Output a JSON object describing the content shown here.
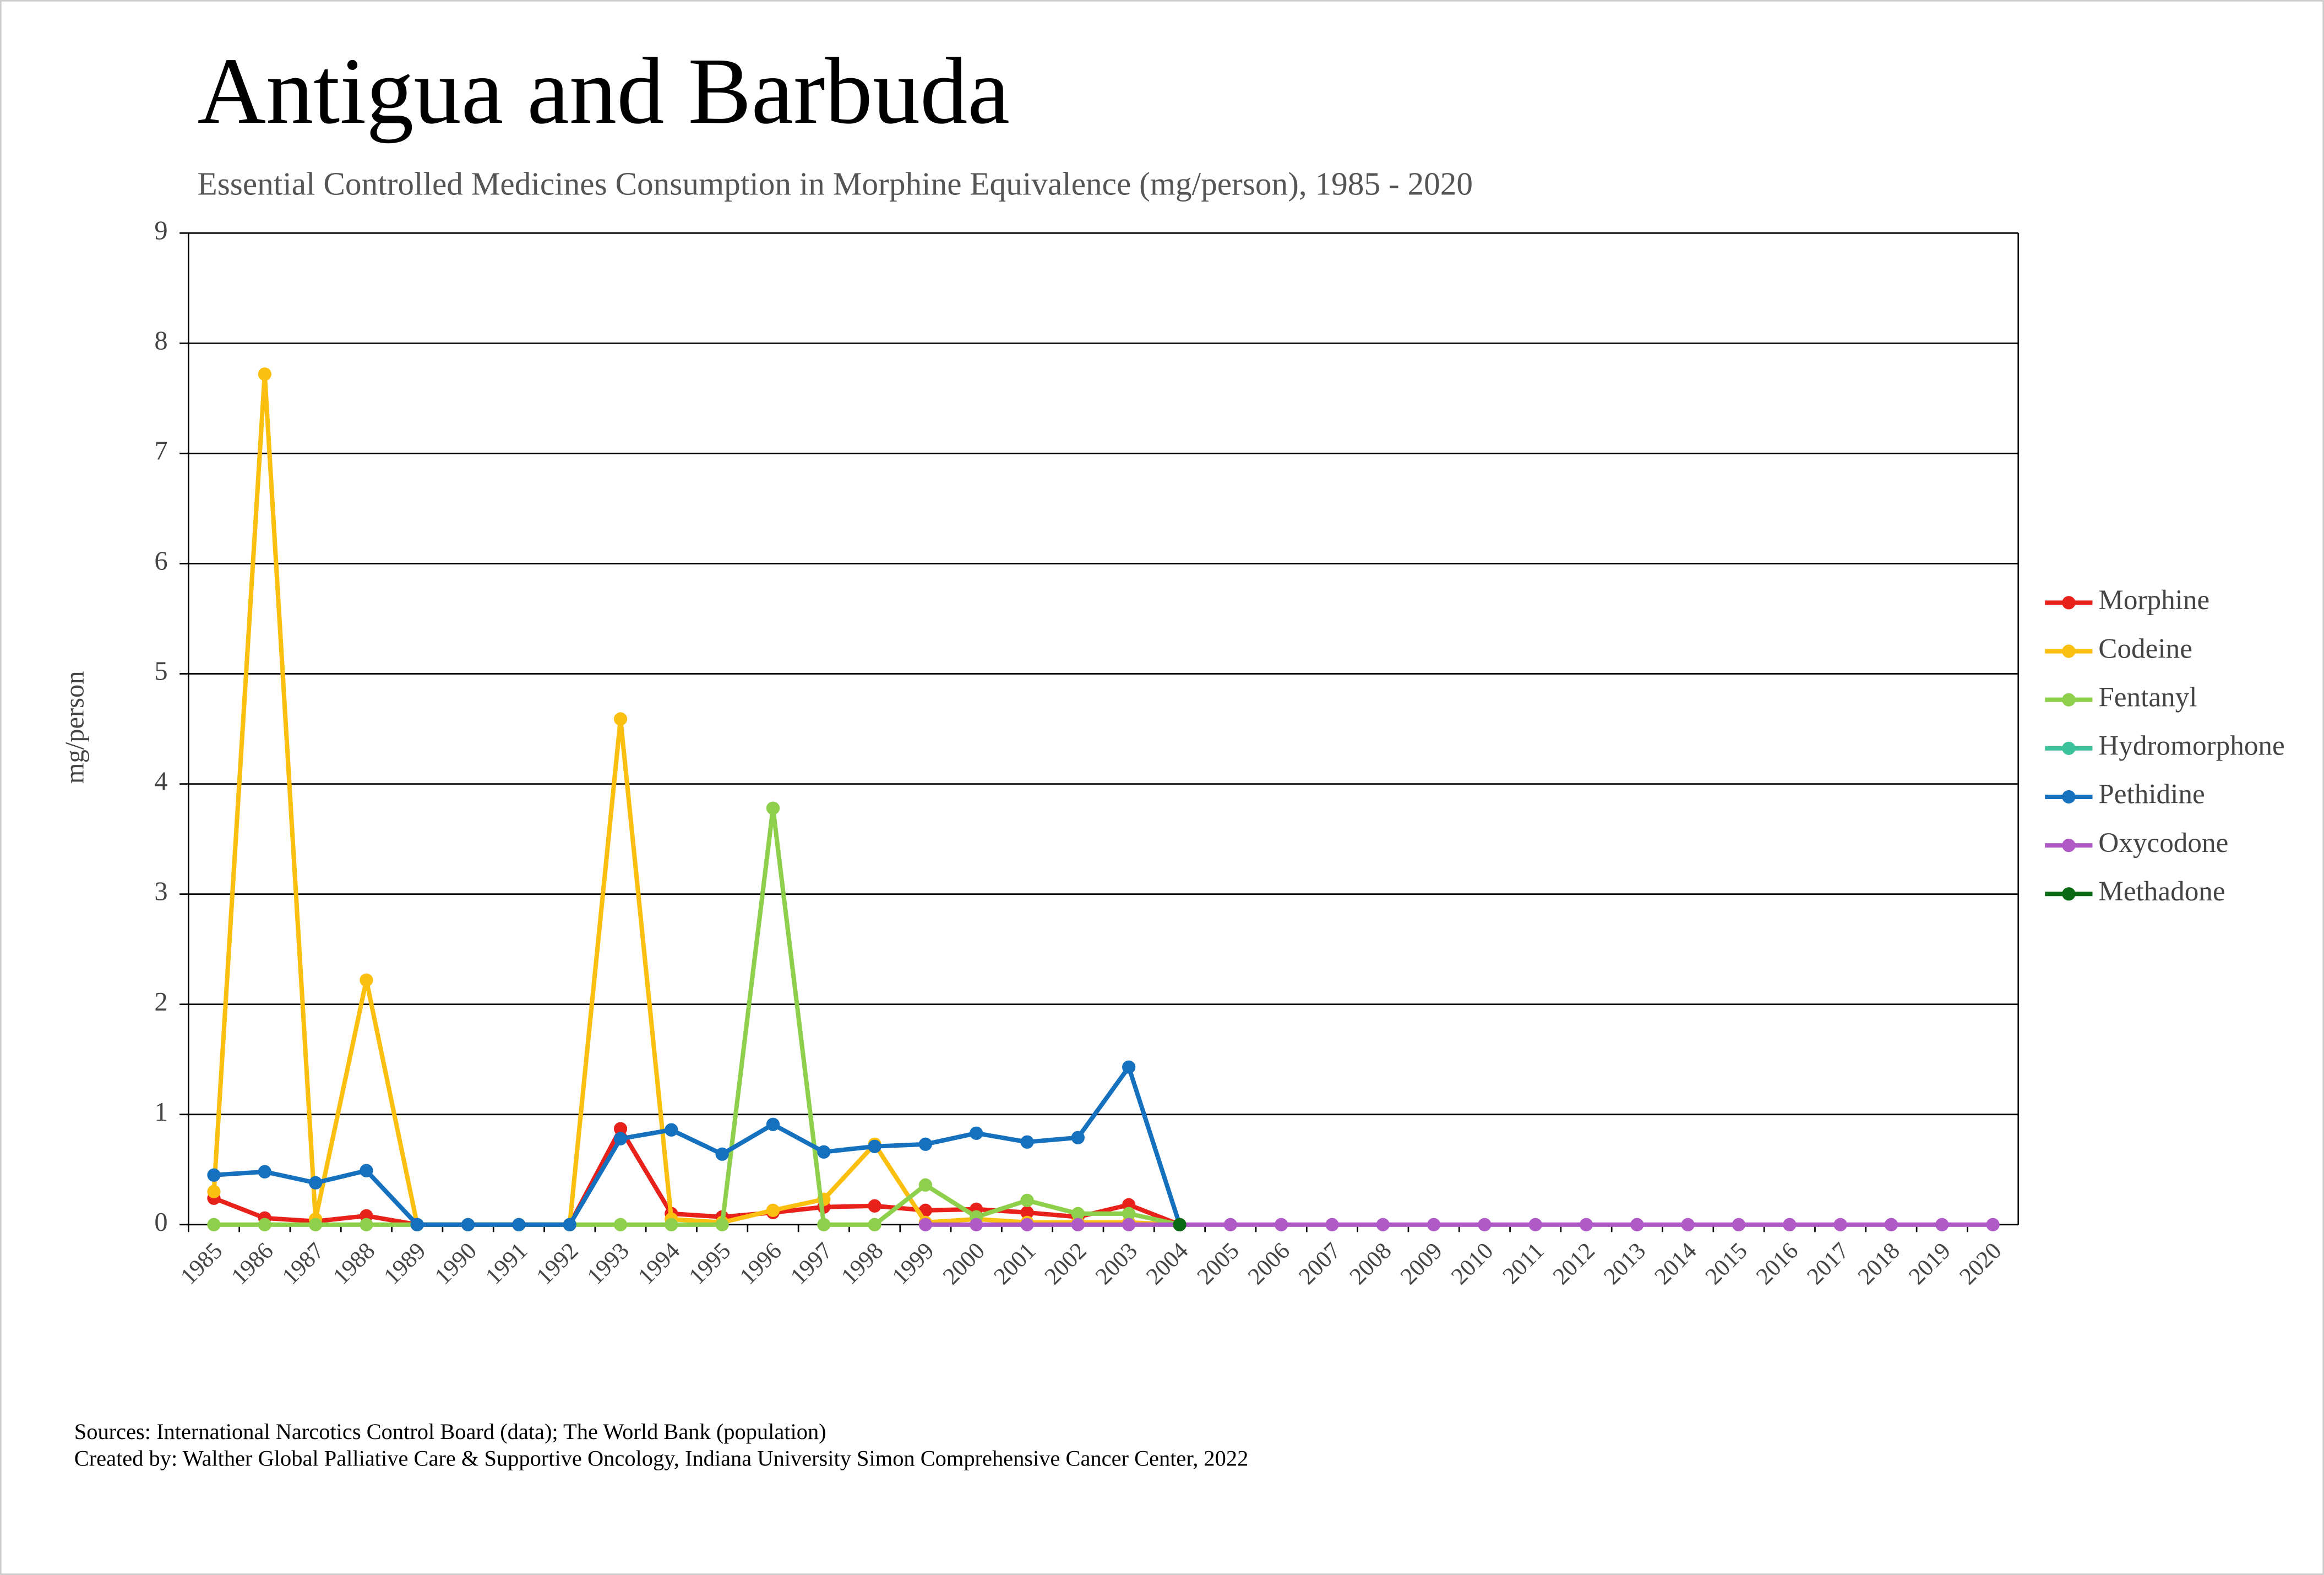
{
  "chart_data": {
    "type": "line",
    "title": "Antigua and Barbuda",
    "subtitle": "Essential Controlled Medicines Consumption in Morphine Equivalence (mg/person), 1985 - 2020",
    "y_label": "mg/person",
    "footnotes": [
      "Sources: International Narcotics Control Board (data); The World Bank (population)",
      "Created by: Walther Global Palliative Care & Supportive Oncology, Indiana University Simon Comprehensive Cancer Center, 2022"
    ],
    "categories": [
      "1985",
      "1986",
      "1987",
      "1988",
      "1989",
      "1990",
      "1991",
      "1992",
      "1993",
      "1994",
      "1995",
      "1996",
      "1997",
      "1998",
      "1999",
      "2000",
      "2001",
      "2002",
      "2003",
      "2004",
      "2005",
      "2006",
      "2007",
      "2008",
      "2009",
      "2010",
      "2011",
      "2012",
      "2013",
      "2014",
      "2015",
      "2016",
      "2017",
      "2018",
      "2019",
      "2020"
    ],
    "ylim": [
      0,
      9
    ],
    "yticks": [
      0,
      1,
      2,
      3,
      4,
      5,
      6,
      7,
      8,
      9
    ],
    "grid": true,
    "legend": "right",
    "series": [
      {
        "name": "Morphine",
        "color": "#e8221a",
        "values": [
          0.24,
          0.06,
          0.03,
          0.08,
          0,
          0,
          0,
          0,
          0.87,
          0.1,
          0.07,
          0.11,
          0.16,
          0.17,
          0.13,
          0.14,
          0.11,
          0.07,
          0.18,
          0,
          null,
          null,
          null,
          null,
          null,
          null,
          null,
          null,
          null,
          null,
          null,
          null,
          null,
          null,
          null,
          null
        ]
      },
      {
        "name": "Codeine",
        "color": "#fbbf0f",
        "values": [
          0.3,
          7.72,
          0.05,
          2.22,
          0,
          0,
          0,
          0,
          4.59,
          0.05,
          0.02,
          0.13,
          0.23,
          0.73,
          0.02,
          0.05,
          0.02,
          0.02,
          0.02,
          0,
          null,
          null,
          null,
          null,
          null,
          null,
          null,
          null,
          null,
          null,
          null,
          null,
          null,
          null,
          null,
          null
        ]
      },
      {
        "name": "Fentanyl",
        "color": "#8ecf4b",
        "values": [
          0,
          0,
          0,
          0,
          0,
          0,
          0,
          0,
          0,
          0,
          0,
          3.78,
          0,
          0,
          0.36,
          0.07,
          0.22,
          0.1,
          0.1,
          0,
          null,
          null,
          null,
          null,
          null,
          null,
          null,
          null,
          null,
          null,
          null,
          null,
          null,
          null,
          null,
          null
        ]
      },
      {
        "name": "Hydromorphone",
        "color": "#3cc29a",
        "values": [
          null,
          null,
          null,
          null,
          null,
          null,
          null,
          null,
          null,
          null,
          null,
          null,
          null,
          null,
          null,
          null,
          null,
          null,
          null,
          null,
          null,
          null,
          null,
          null,
          null,
          null,
          null,
          null,
          null,
          null,
          null,
          null,
          null,
          null,
          null,
          null
        ]
      },
      {
        "name": "Pethidine",
        "color": "#1570be",
        "values": [
          0.45,
          0.48,
          0.38,
          0.49,
          0,
          0,
          0,
          0,
          0.78,
          0.86,
          0.64,
          0.91,
          0.66,
          0.71,
          0.73,
          0.83,
          0.75,
          0.79,
          1.43,
          0,
          null,
          null,
          null,
          null,
          null,
          null,
          null,
          null,
          null,
          null,
          null,
          null,
          null,
          null,
          null,
          null
        ]
      },
      {
        "name": "Oxycodone",
        "color": "#b05ac8",
        "values": [
          null,
          null,
          null,
          null,
          null,
          null,
          null,
          null,
          null,
          null,
          null,
          null,
          null,
          null,
          0,
          0,
          0,
          0,
          0,
          0,
          0,
          0,
          0,
          0,
          0,
          0,
          0,
          0,
          0,
          0,
          0,
          0,
          0,
          0,
          0,
          0
        ]
      },
      {
        "name": "Methadone",
        "color": "#0a6a14",
        "values": [
          null,
          null,
          null,
          null,
          null,
          null,
          null,
          null,
          null,
          null,
          null,
          null,
          null,
          null,
          null,
          null,
          null,
          null,
          null,
          0,
          null,
          null,
          null,
          null,
          null,
          null,
          null,
          null,
          null,
          null,
          null,
          null,
          null,
          null,
          null,
          null
        ]
      }
    ]
  }
}
